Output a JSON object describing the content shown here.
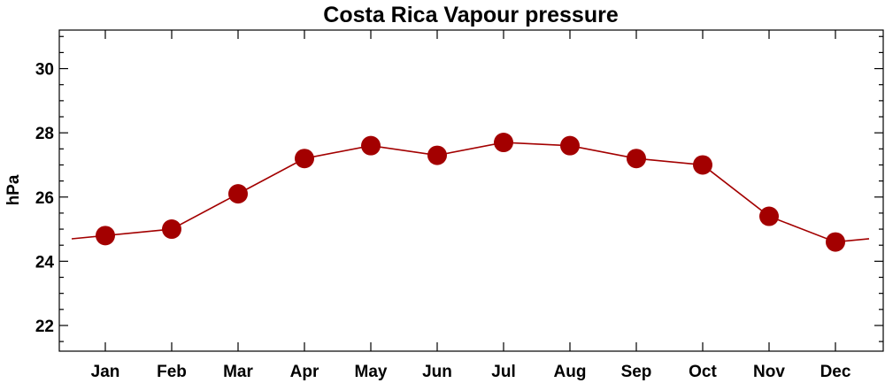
{
  "chart_data": {
    "type": "line",
    "title": "Costa Rica Vapour pressure",
    "xlabel": "",
    "ylabel": "hPa",
    "categories": [
      "Jan",
      "Feb",
      "Mar",
      "Apr",
      "May",
      "Jun",
      "Jul",
      "Aug",
      "Sep",
      "Oct",
      "Nov",
      "Dec"
    ],
    "values": [
      24.8,
      25.0,
      26.1,
      27.2,
      27.6,
      27.3,
      27.7,
      27.6,
      27.2,
      27.0,
      25.4,
      24.6
    ],
    "ylim": [
      21.2,
      31.2
    ],
    "yticks": [
      22,
      24,
      26,
      28,
      30
    ],
    "ytick_labels": [
      "22",
      "24",
      "26",
      "28",
      "30"
    ],
    "line_wraps_around_year": true,
    "series_color": "#a30000",
    "grid": false,
    "legend": "none"
  }
}
